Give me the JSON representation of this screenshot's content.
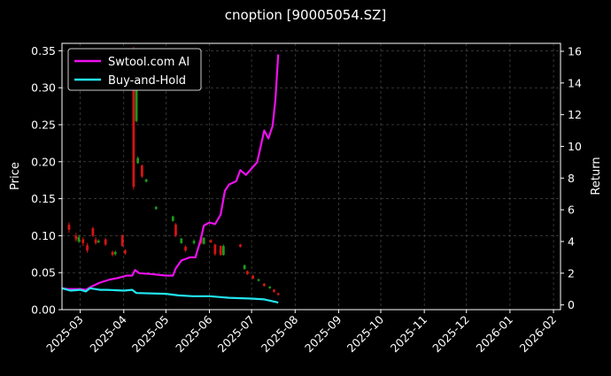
{
  "chart_data": {
    "type": "candlestick+line",
    "title": "cnoption [90005054.SZ]",
    "ylabel_left": "Price",
    "ylabel_right": "Return",
    "ylim_left": [
      0,
      0.36
    ],
    "ylim_right": [
      -0.3,
      16.5
    ],
    "xlim": [
      "2025-02-16",
      "2026-02-06"
    ],
    "grid": true,
    "legend_position": "top-left",
    "yticks_left": [
      "0.00",
      "0.05",
      "0.10",
      "0.15",
      "0.20",
      "0.25",
      "0.30",
      "0.35"
    ],
    "yticks_right": [
      "0",
      "2",
      "4",
      "6",
      "8",
      "10",
      "12",
      "14",
      "16"
    ],
    "xticks": [
      "2025-03",
      "2025-04",
      "2025-05",
      "2025-06",
      "2025-07",
      "2025-08",
      "2025-09",
      "2025-10",
      "2025-11",
      "2025-12",
      "2026-01",
      "2026-02"
    ],
    "xtick_dates": [
      "2025-03-01",
      "2025-04-01",
      "2025-05-01",
      "2025-06-01",
      "2025-07-01",
      "2025-08-01",
      "2025-09-01",
      "2025-10-01",
      "2025-11-01",
      "2025-12-01",
      "2026-01-01",
      "2026-02-01"
    ],
    "colors": {
      "up": "#1a9a1a",
      "down": "#d41414",
      "strategy": "#ee10ee",
      "benchmark": "#22e6f0",
      "grid": "#555555",
      "background": "#000000"
    },
    "series": [
      {
        "name": "Swtool.com AI",
        "axis": "right",
        "points": [
          [
            "2025-02-16",
            1.05
          ],
          [
            "2025-02-20",
            1.0
          ],
          [
            "2025-03-01",
            1.0
          ],
          [
            "2025-03-05",
            0.95
          ],
          [
            "2025-03-10",
            1.2
          ],
          [
            "2025-03-15",
            1.4
          ],
          [
            "2025-03-22",
            1.6
          ],
          [
            "2025-03-28",
            1.7
          ],
          [
            "2025-04-03",
            1.85
          ],
          [
            "2025-04-07",
            1.85
          ],
          [
            "2025-04-09",
            2.2
          ],
          [
            "2025-04-12",
            2.0
          ],
          [
            "2025-04-20",
            1.95
          ],
          [
            "2025-05-01",
            1.85
          ],
          [
            "2025-05-06",
            1.85
          ],
          [
            "2025-05-08",
            2.3
          ],
          [
            "2025-05-12",
            2.8
          ],
          [
            "2025-05-18",
            3.0
          ],
          [
            "2025-05-22",
            3.0
          ],
          [
            "2025-05-26",
            4.2
          ],
          [
            "2025-05-28",
            5.0
          ],
          [
            "2025-06-01",
            5.2
          ],
          [
            "2025-06-05",
            5.1
          ],
          [
            "2025-06-09",
            5.7
          ],
          [
            "2025-06-12",
            7.2
          ],
          [
            "2025-06-15",
            7.6
          ],
          [
            "2025-06-20",
            7.8
          ],
          [
            "2025-06-23",
            8.5
          ],
          [
            "2025-06-27",
            8.2
          ],
          [
            "2025-07-01",
            8.6
          ],
          [
            "2025-07-05",
            9.0
          ],
          [
            "2025-07-08",
            10.2
          ],
          [
            "2025-07-10",
            11.0
          ],
          [
            "2025-07-13",
            10.5
          ],
          [
            "2025-07-16",
            11.3
          ],
          [
            "2025-07-18",
            13.0
          ],
          [
            "2025-07-20",
            15.8
          ]
        ]
      },
      {
        "name": "Buy-and-Hold",
        "axis": "right",
        "points": [
          [
            "2025-02-16",
            1.05
          ],
          [
            "2025-02-22",
            0.9
          ],
          [
            "2025-03-01",
            0.95
          ],
          [
            "2025-03-05",
            0.85
          ],
          [
            "2025-03-08",
            1.05
          ],
          [
            "2025-03-15",
            0.95
          ],
          [
            "2025-03-20",
            0.95
          ],
          [
            "2025-04-01",
            0.9
          ],
          [
            "2025-04-07",
            0.95
          ],
          [
            "2025-04-10",
            0.75
          ],
          [
            "2025-05-01",
            0.7
          ],
          [
            "2025-05-10",
            0.6
          ],
          [
            "2025-05-20",
            0.55
          ],
          [
            "2025-06-01",
            0.55
          ],
          [
            "2025-06-15",
            0.45
          ],
          [
            "2025-07-01",
            0.4
          ],
          [
            "2025-07-10",
            0.35
          ],
          [
            "2025-07-20",
            0.15
          ]
        ]
      }
    ],
    "candles": [
      {
        "date": "2025-02-21",
        "open": 0.115,
        "close": 0.108,
        "high": 0.118,
        "low": 0.104
      },
      {
        "date": "2025-02-26",
        "open": 0.1,
        "close": 0.095,
        "high": 0.104,
        "low": 0.092
      },
      {
        "date": "2025-02-28",
        "open": 0.092,
        "close": 0.098,
        "high": 0.101,
        "low": 0.09
      },
      {
        "date": "2025-03-03",
        "open": 0.095,
        "close": 0.09,
        "high": 0.098,
        "low": 0.086
      },
      {
        "date": "2025-03-06",
        "open": 0.087,
        "close": 0.08,
        "high": 0.09,
        "low": 0.077
      },
      {
        "date": "2025-03-10",
        "open": 0.11,
        "close": 0.1,
        "high": 0.112,
        "low": 0.098
      },
      {
        "date": "2025-03-12",
        "open": 0.095,
        "close": 0.09,
        "high": 0.098,
        "low": 0.088
      },
      {
        "date": "2025-03-14",
        "open": 0.091,
        "close": 0.093,
        "high": 0.095,
        "low": 0.09
      },
      {
        "date": "2025-03-19",
        "open": 0.095,
        "close": 0.088,
        "high": 0.097,
        "low": 0.086
      },
      {
        "date": "2025-03-24",
        "open": 0.078,
        "close": 0.074,
        "high": 0.08,
        "low": 0.072
      },
      {
        "date": "2025-03-26",
        "open": 0.075,
        "close": 0.078,
        "high": 0.08,
        "low": 0.073
      },
      {
        "date": "2025-03-31",
        "open": 0.1,
        "close": 0.086,
        "high": 0.102,
        "low": 0.085
      },
      {
        "date": "2025-04-02",
        "open": 0.08,
        "close": 0.076,
        "high": 0.082,
        "low": 0.074
      },
      {
        "date": "2025-04-08",
        "open": 0.35,
        "close": 0.166,
        "high": 0.355,
        "low": 0.162
      },
      {
        "date": "2025-04-10",
        "open": 0.255,
        "close": 0.3,
        "high": 0.305,
        "low": 0.253
      },
      {
        "date": "2025-04-11",
        "open": 0.198,
        "close": 0.205,
        "high": 0.207,
        "low": 0.197
      },
      {
        "date": "2025-04-14",
        "open": 0.195,
        "close": 0.18,
        "high": 0.196,
        "low": 0.178
      },
      {
        "date": "2025-04-17",
        "open": 0.173,
        "close": 0.176,
        "high": 0.177,
        "low": 0.172
      },
      {
        "date": "2025-04-24",
        "open": 0.136,
        "close": 0.139,
        "high": 0.14,
        "low": 0.135
      },
      {
        "date": "2025-05-06",
        "open": 0.12,
        "close": 0.126,
        "high": 0.127,
        "low": 0.119
      },
      {
        "date": "2025-05-08",
        "open": 0.115,
        "close": 0.1,
        "high": 0.117,
        "low": 0.098
      },
      {
        "date": "2025-05-12",
        "open": 0.09,
        "close": 0.096,
        "high": 0.097,
        "low": 0.089
      },
      {
        "date": "2025-05-15",
        "open": 0.085,
        "close": 0.08,
        "high": 0.087,
        "low": 0.078
      },
      {
        "date": "2025-05-21",
        "open": 0.09,
        "close": 0.093,
        "high": 0.095,
        "low": 0.088
      },
      {
        "date": "2025-05-26",
        "open": 0.098,
        "close": 0.09,
        "high": 0.099,
        "low": 0.088
      },
      {
        "date": "2025-05-28",
        "open": 0.089,
        "close": 0.097,
        "high": 0.098,
        "low": 0.088
      },
      {
        "date": "2025-06-02",
        "open": 0.094,
        "close": 0.091,
        "high": 0.095,
        "low": 0.09
      },
      {
        "date": "2025-06-05",
        "open": 0.088,
        "close": 0.075,
        "high": 0.089,
        "low": 0.073
      },
      {
        "date": "2025-06-09",
        "open": 0.086,
        "close": 0.074,
        "high": 0.087,
        "low": 0.073
      },
      {
        "date": "2025-06-11",
        "open": 0.074,
        "close": 0.086,
        "high": 0.088,
        "low": 0.073
      },
      {
        "date": "2025-06-23",
        "open": 0.088,
        "close": 0.085,
        "high": 0.089,
        "low": 0.084
      },
      {
        "date": "2025-06-26",
        "open": 0.055,
        "close": 0.06,
        "high": 0.061,
        "low": 0.054
      },
      {
        "date": "2025-06-28",
        "open": 0.052,
        "close": 0.048,
        "high": 0.053,
        "low": 0.047
      },
      {
        "date": "2025-07-02",
        "open": 0.046,
        "close": 0.042,
        "high": 0.047,
        "low": 0.041
      },
      {
        "date": "2025-07-06",
        "open": 0.039,
        "close": 0.041,
        "high": 0.042,
        "low": 0.038
      },
      {
        "date": "2025-07-10",
        "open": 0.035,
        "close": 0.032,
        "high": 0.036,
        "low": 0.031
      },
      {
        "date": "2025-07-14",
        "open": 0.029,
        "close": 0.031,
        "high": 0.032,
        "low": 0.028
      },
      {
        "date": "2025-07-17",
        "open": 0.027,
        "close": 0.024,
        "high": 0.028,
        "low": 0.023
      },
      {
        "date": "2025-07-20",
        "open": 0.022,
        "close": 0.02,
        "high": 0.023,
        "low": 0.019
      }
    ]
  }
}
